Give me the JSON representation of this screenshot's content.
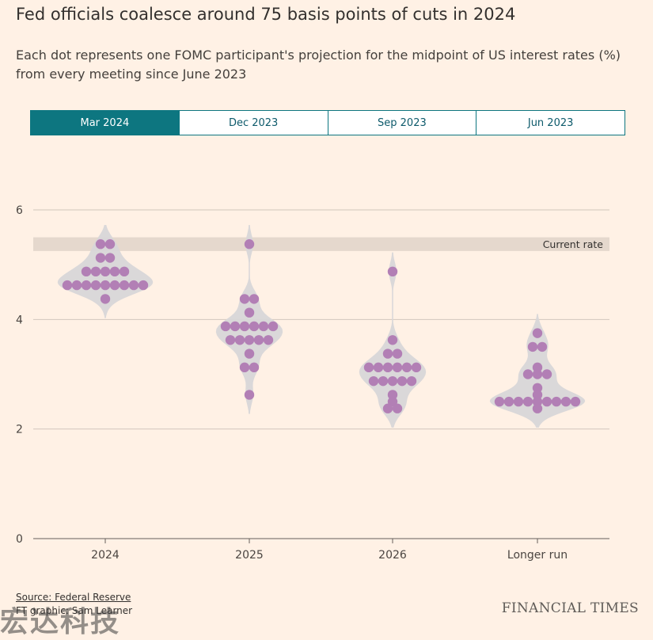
{
  "title": "Fed officials coalesce around 75 basis points of cuts in 2024",
  "subtitle": "Each dot represents one FOMC participant's projection for the midpoint of US interest rates (%) from every meeting since June 2023",
  "tabs": [
    {
      "label": "Mar 2024",
      "active": true
    },
    {
      "label": "Dec 2023",
      "active": false
    },
    {
      "label": "Sep 2023",
      "active": false
    },
    {
      "label": "Jun 2023",
      "active": false
    }
  ],
  "colors": {
    "dot": "#b27fb5",
    "violin": "#d8d6d8",
    "band": "#e5d8cd",
    "grid": "#d2c6bc",
    "active_tab": "#0d7680"
  },
  "chart_data": {
    "type": "scatter",
    "categories": [
      "2024",
      "2025",
      "2026",
      "Longer run"
    ],
    "yticks": [
      0,
      2,
      4,
      6
    ],
    "ylim": [
      0,
      6
    ],
    "current_rate": {
      "label": "Current rate",
      "range": [
        5.25,
        5.5
      ]
    },
    "series": [
      {
        "category": "2024",
        "values": [
          5.375,
          5.375,
          5.125,
          5.125,
          4.875,
          4.875,
          4.875,
          4.875,
          4.875,
          4.625,
          4.625,
          4.625,
          4.625,
          4.625,
          4.625,
          4.625,
          4.625,
          4.625,
          4.375
        ]
      },
      {
        "category": "2025",
        "values": [
          5.375,
          4.375,
          4.375,
          4.125,
          3.875,
          3.875,
          3.875,
          3.875,
          3.875,
          3.875,
          3.625,
          3.625,
          3.625,
          3.625,
          3.625,
          3.375,
          3.125,
          3.125,
          2.625
        ]
      },
      {
        "category": "2026",
        "values": [
          4.875,
          3.625,
          3.375,
          3.375,
          3.125,
          3.125,
          3.125,
          3.125,
          3.125,
          3.125,
          2.875,
          2.875,
          2.875,
          2.875,
          2.875,
          2.625,
          2.5,
          2.375,
          2.375
        ]
      },
      {
        "category": "Longer run",
        "values": [
          3.75,
          3.5,
          3.5,
          3.125,
          3.0,
          3.0,
          3.0,
          2.75,
          2.625,
          2.5,
          2.5,
          2.5,
          2.5,
          2.5,
          2.5,
          2.5,
          2.5,
          2.5,
          2.375
        ]
      }
    ]
  },
  "source": {
    "line1": "Source: Federal Reserve",
    "line2": "FT graphic: Sam Learner"
  },
  "brand": "FINANCIAL TIMES",
  "watermark": "宏达科技"
}
